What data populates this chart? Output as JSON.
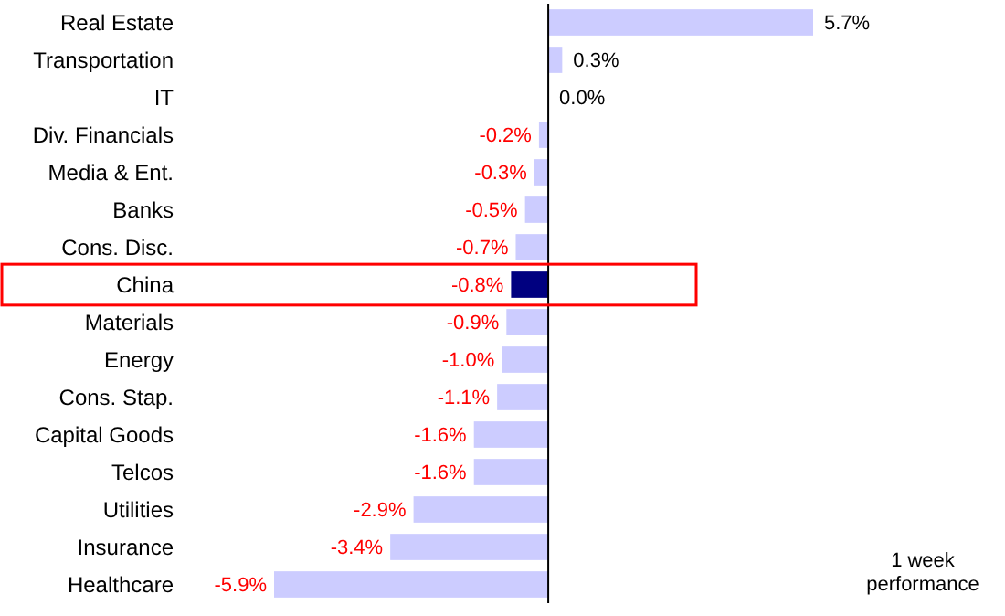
{
  "chart_data": {
    "type": "bar",
    "orientation": "horizontal",
    "categories": [
      "Real Estate",
      "Transportation",
      "IT",
      "Div. Financials",
      "Media & Ent.",
      "Banks",
      "Cons. Disc.",
      "China",
      "Materials",
      "Energy",
      "Cons. Stap.",
      "Capital Goods",
      "Telcos",
      "Utilities",
      "Insurance",
      "Healthcare"
    ],
    "values": [
      5.7,
      0.3,
      0.0,
      -0.2,
      -0.3,
      -0.5,
      -0.7,
      -0.8,
      -0.9,
      -1.0,
      -1.1,
      -1.6,
      -1.6,
      -2.9,
      -3.4,
      -5.9
    ],
    "colors": [
      "#ccccff",
      "#ccccff",
      "#ccccff",
      "#ccccff",
      "#ccccff",
      "#ccccff",
      "#ccccff",
      "#000080",
      "#ccccff",
      "#ccccff",
      "#ccccff",
      "#ccccff",
      "#ccccff",
      "#ccccff",
      "#ccccff",
      "#ccccff"
    ],
    "value_labels": [
      "5.7%",
      "0.3%",
      "0.0%",
      "-0.2%",
      "-0.3%",
      "-0.5%",
      "-0.7%",
      "-0.8%",
      "-0.9%",
      "-1.0%",
      "-1.1%",
      "-1.6%",
      "-1.6%",
      "-2.9%",
      "-3.4%",
      "-5.9%"
    ],
    "tick_labels": "y",
    "annotations": [
      "1 week performance"
    ]
  }
}
